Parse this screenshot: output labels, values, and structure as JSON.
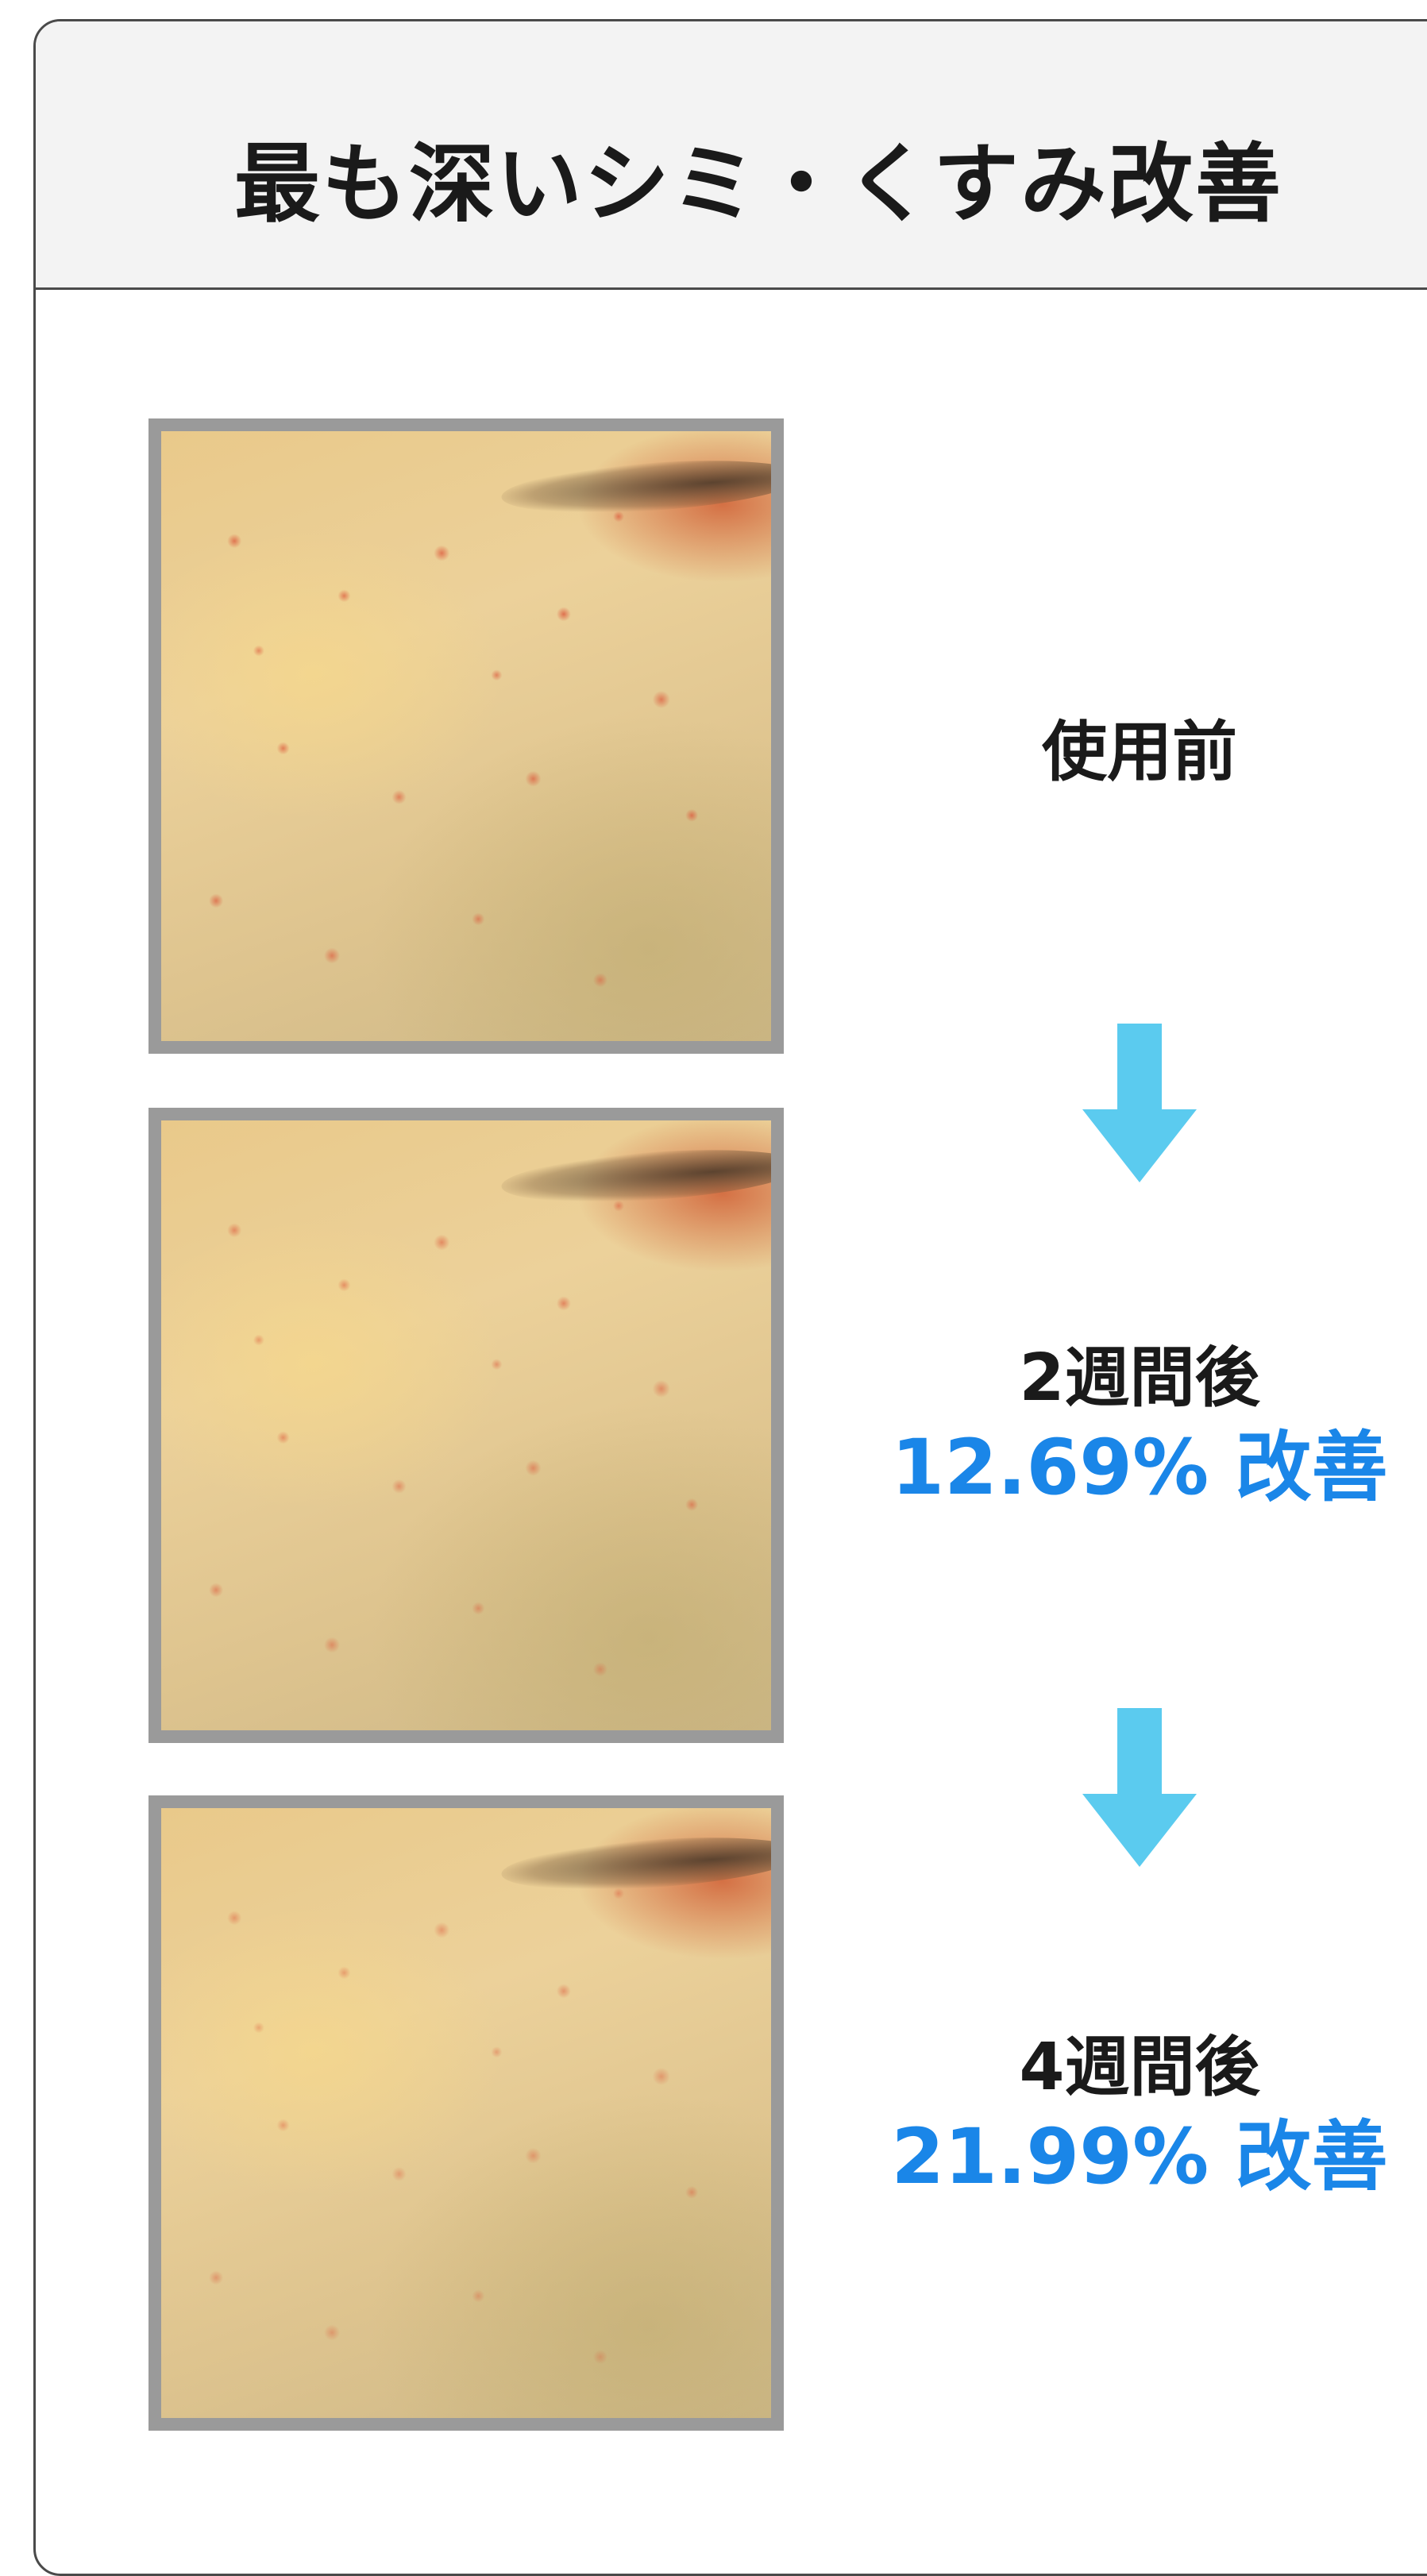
{
  "card": {
    "title": "最も深いシミ・くすみ改善"
  },
  "stages": [
    {
      "label": "使用前",
      "improvement": ""
    },
    {
      "label": "2週間後",
      "improvement": "12.69% 改善"
    },
    {
      "label": "4週間後",
      "improvement": "21.99% 改善"
    }
  ],
  "colors": {
    "accent_blue": "#1a86e8",
    "arrow_blue": "#5bcbef",
    "photo_frame": "#9a9a9a",
    "header_bg": "#f3f3f3"
  },
  "icons": {
    "arrow": "arrow-down-icon"
  }
}
